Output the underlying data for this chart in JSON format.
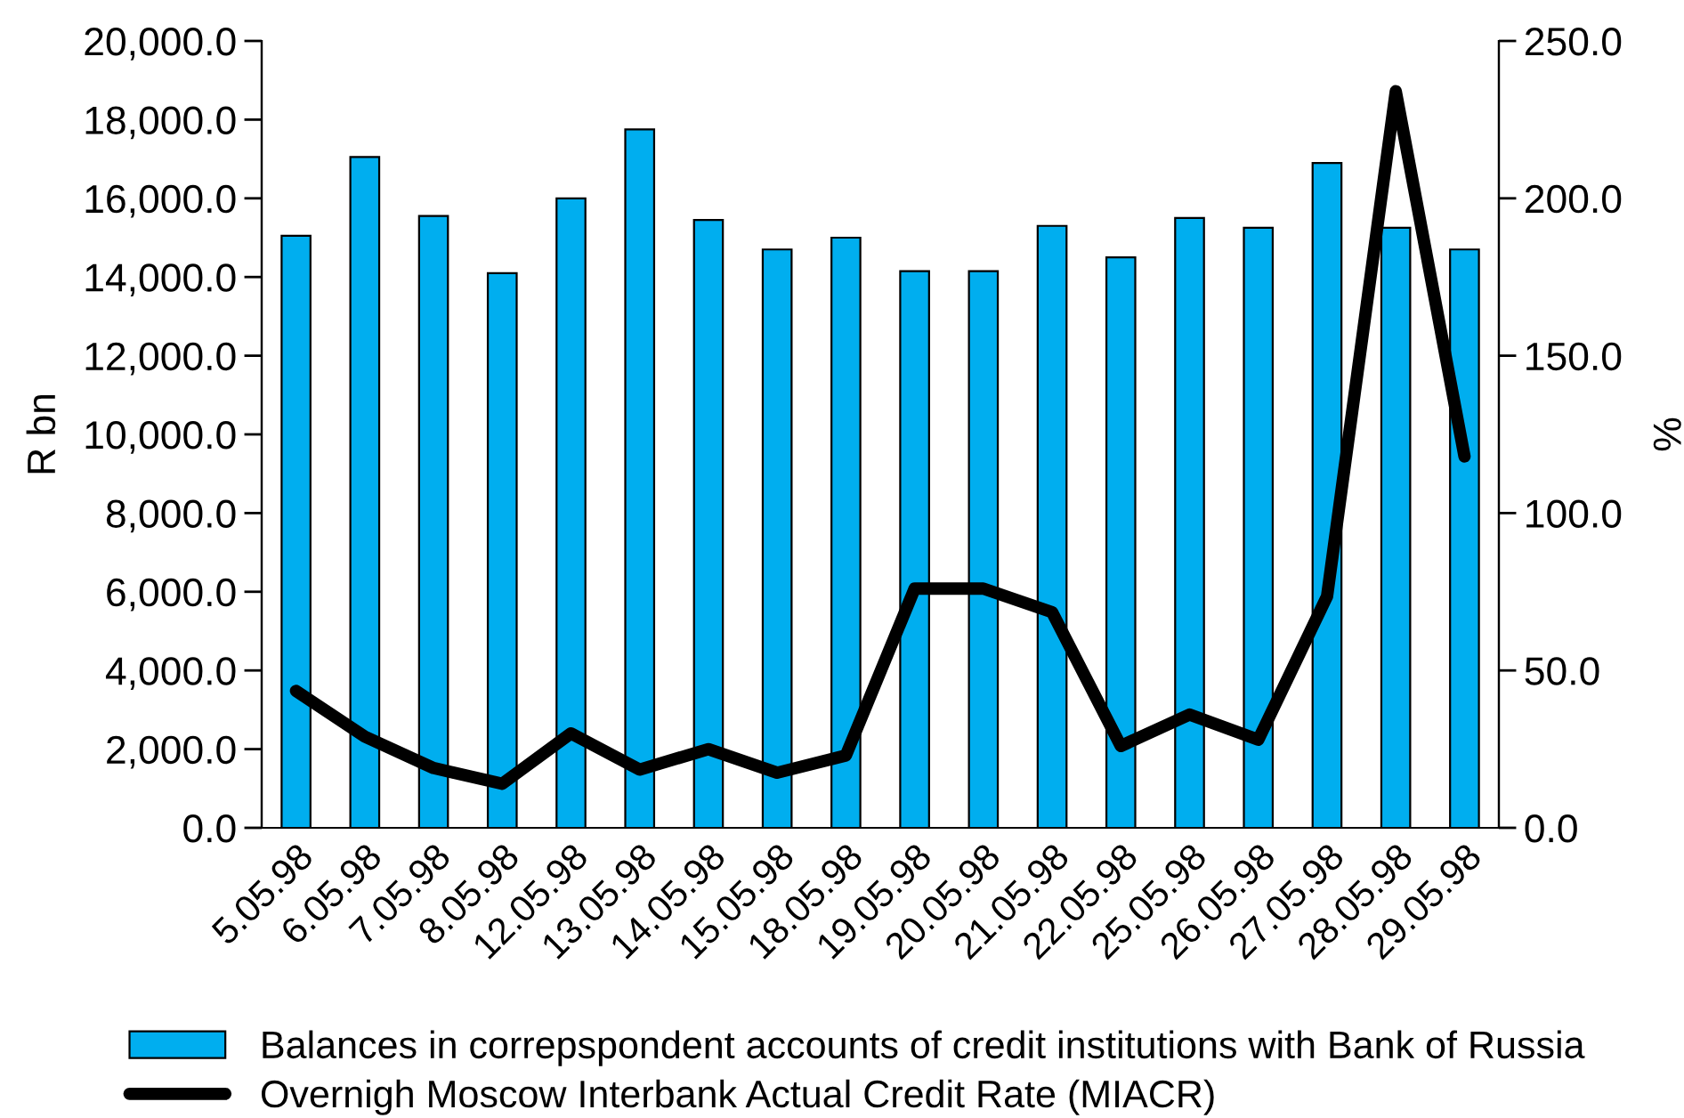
{
  "chart_data": {
    "type": "bar",
    "ylabel": "R bn",
    "y2label": "%",
    "categories": [
      "5.05.98",
      "6.05.98",
      "7.05.98",
      "8.05.98",
      "12.05.98",
      "13.05.98",
      "14.05.98",
      "15.05.98",
      "18.05.98",
      "19.05.98",
      "20.05.98",
      "21.05.98",
      "22.05.98",
      "25.05.98",
      "26.05.98",
      "27.05.98",
      "28.05.98",
      "29.05.98"
    ],
    "series": [
      {
        "name": "Balances in correpspondent accounts of credit institutions with Bank of Russia",
        "color": "#00aeef",
        "values": [
          15050,
          17050,
          15550,
          14100,
          16000,
          17750,
          15450,
          14700,
          15000,
          14150,
          14150,
          15300,
          14500,
          15500,
          15250,
          16900,
          15250,
          14700
        ]
      },
      {
        "name": "Overnigh Moscow Interbank Actual Credit Rate (MIACR)",
        "type": "line",
        "axis": "y2",
        "color": "#000000",
        "values": [
          43.5,
          29,
          19,
          14,
          30,
          18.5,
          25,
          17.5,
          23,
          76,
          76,
          68.5,
          26,
          36,
          28,
          73.5,
          234,
          118
        ]
      }
    ],
    "ylim": [
      0,
      20000
    ],
    "yticks": [
      {
        "value": 0,
        "label": "0.0"
      },
      {
        "value": 2000,
        "label": "2,000.0"
      },
      {
        "value": 4000,
        "label": "4,000.0"
      },
      {
        "value": 6000,
        "label": "6,000.0"
      },
      {
        "value": 8000,
        "label": "8,000.0"
      },
      {
        "value": 10000,
        "label": "10,000.0"
      },
      {
        "value": 12000,
        "label": "12,000.0"
      },
      {
        "value": 14000,
        "label": "14,000.0"
      },
      {
        "value": 16000,
        "label": "16,000.0"
      },
      {
        "value": 18000,
        "label": "18,000.0"
      },
      {
        "value": 20000,
        "label": "20,000.0"
      }
    ],
    "y2lim": [
      0,
      250
    ],
    "y2ticks": [
      {
        "value": 0,
        "label": "0.0"
      },
      {
        "value": 50,
        "label": "50.0"
      },
      {
        "value": 100,
        "label": "100.0"
      },
      {
        "value": 150,
        "label": "150.0"
      },
      {
        "value": 200,
        "label": "200.0"
      },
      {
        "value": 250,
        "label": "250.0"
      }
    ],
    "legend": "bottom",
    "line_style": "solid"
  }
}
